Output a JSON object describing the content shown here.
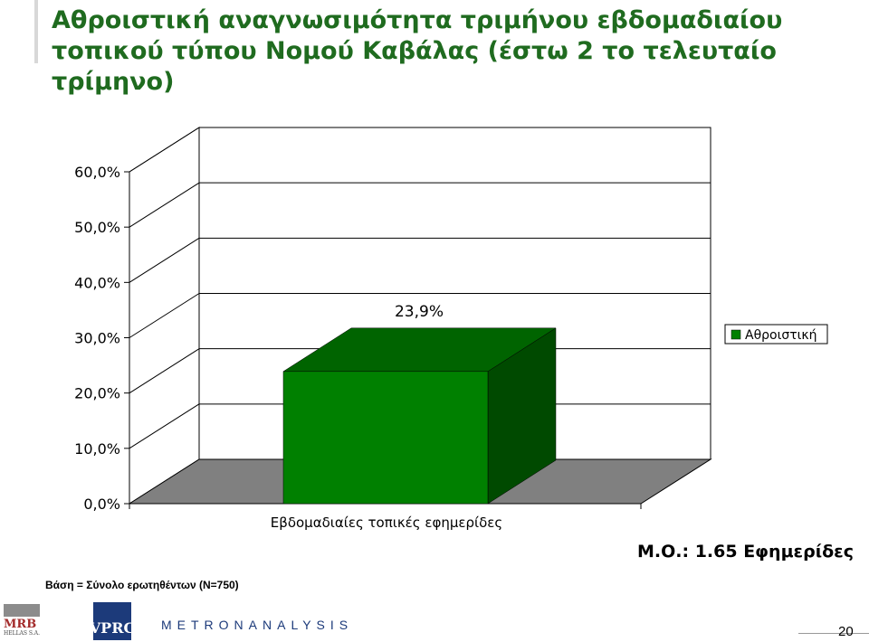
{
  "title": "Αθροιστική αναγνωσιμότητα τριμήνου εβδομαδιαίου τοπικού τύπου Νομού Καβάλας (έστω 2 το τελευταίο τρίμηνο)",
  "average_note": "Μ.Ο.: 1.65 Εφημερίδες",
  "base_note": "Βάση = Σύνολο ερωτηθέντων (N=750)",
  "logos": {
    "mrb": "MRB",
    "mrb_sub": "HELLAS S.A.",
    "vprc": "VPRC",
    "metron": "METRONANALYSIS"
  },
  "page_number": "20",
  "colors": {
    "title": "#1f6b1f",
    "bar_front": "#008000",
    "bar_top": "#006400",
    "bar_side": "#004a00",
    "floor": "#808080"
  },
  "chart_data": {
    "type": "bar",
    "categories": [
      "Εβδομαδιαίες τοπικές εφημερίδες"
    ],
    "series": [
      {
        "name": "Αθροιστική",
        "values": [
          23.9
        ]
      }
    ],
    "data_labels": [
      "23,9%"
    ],
    "y_ticks": [
      "0,0%",
      "10,0%",
      "20,0%",
      "30,0%",
      "40,0%",
      "50,0%",
      "60,0%"
    ],
    "ylim": [
      0,
      60
    ],
    "grid": true,
    "three_d": true,
    "legend_position": "right"
  }
}
